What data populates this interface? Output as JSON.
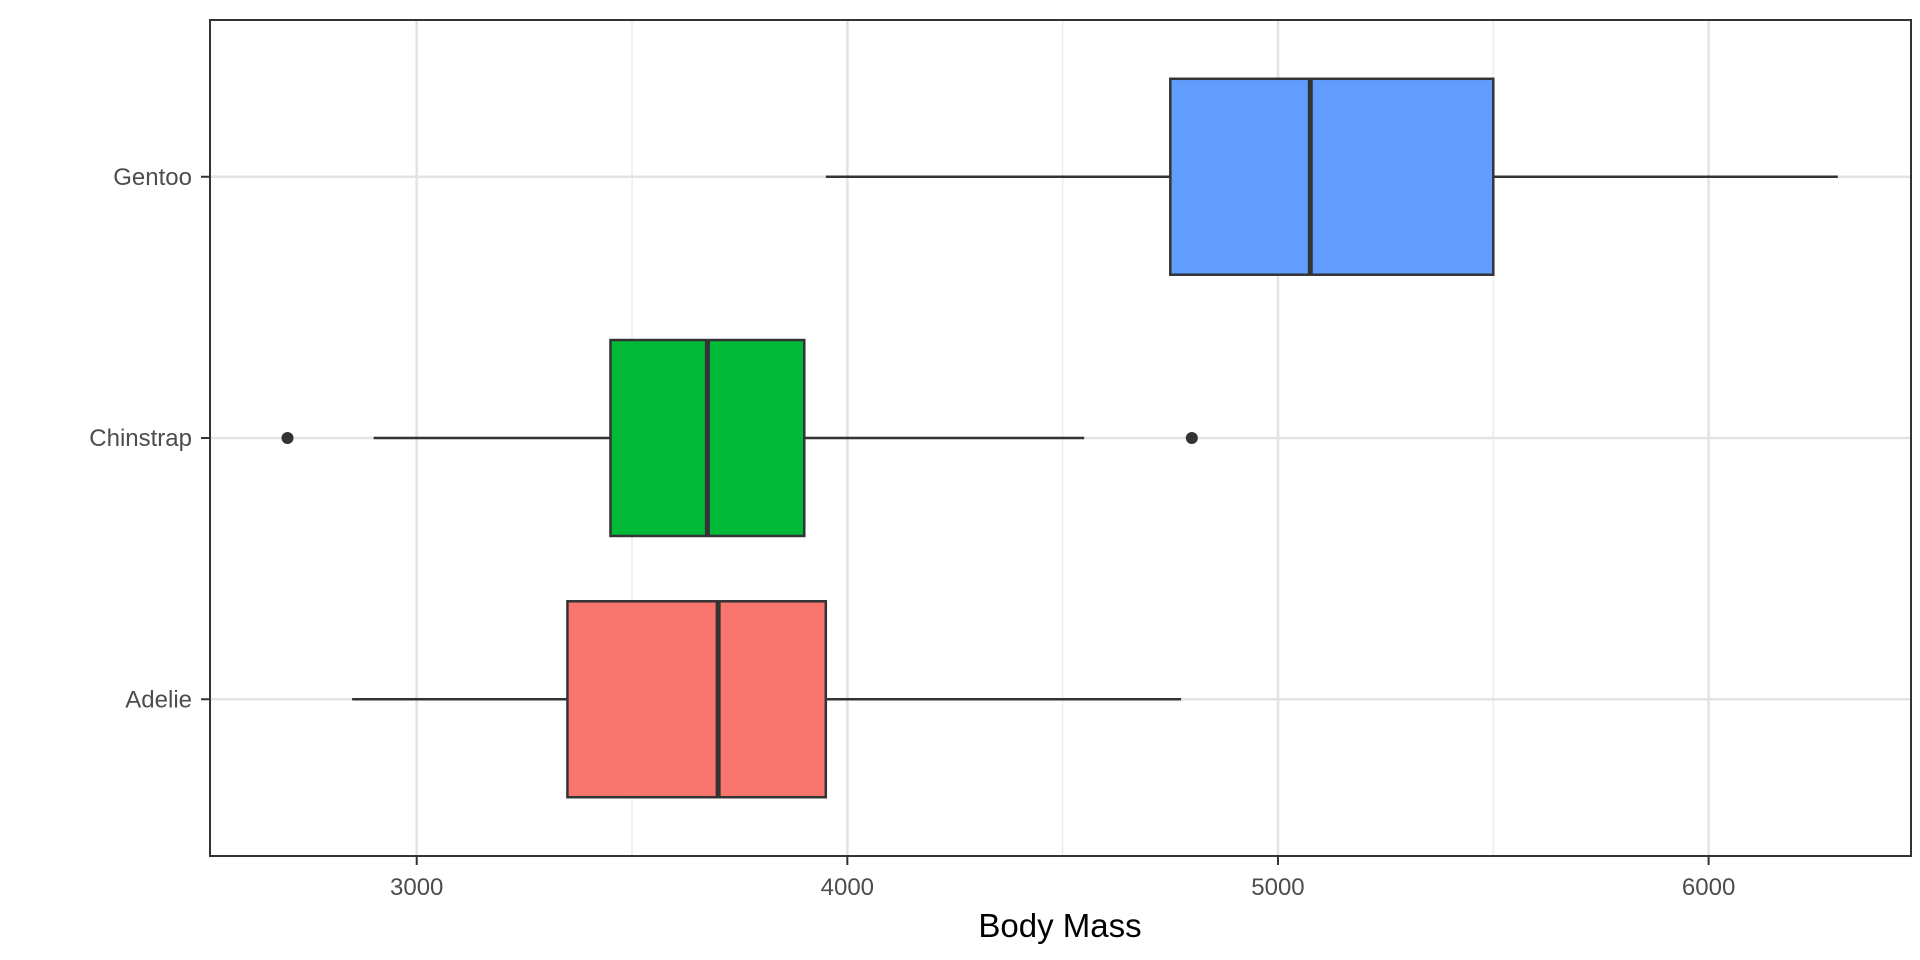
{
  "chart_data": {
    "type": "boxplot",
    "orientation": "horizontal",
    "title": "",
    "xlabel": "Body Mass",
    "ylabel": "",
    "xlim": [
      2520,
      6470
    ],
    "x_ticks": [
      3000,
      4000,
      5000,
      6000
    ],
    "grid": true,
    "legend": "none",
    "categories": [
      "Adelie",
      "Chinstrap",
      "Gentoo"
    ],
    "boxes": [
      {
        "category": "Adelie",
        "whisker_low": 2850,
        "q1": 3350,
        "median": 3700,
        "q3": 3950,
        "whisker_high": 4775,
        "outliers": [],
        "color": "#F8766D"
      },
      {
        "category": "Chinstrap",
        "whisker_low": 2900,
        "q1": 3450,
        "median": 3675,
        "q3": 3900,
        "whisker_high": 4550,
        "outliers": [
          2700,
          4800
        ],
        "color": "#00BA38"
      },
      {
        "category": "Gentoo",
        "whisker_low": 3950,
        "q1": 4750,
        "median": 5075,
        "q3": 5500,
        "whisker_high": 6300,
        "outliers": [],
        "color": "#619CFF"
      }
    ]
  }
}
